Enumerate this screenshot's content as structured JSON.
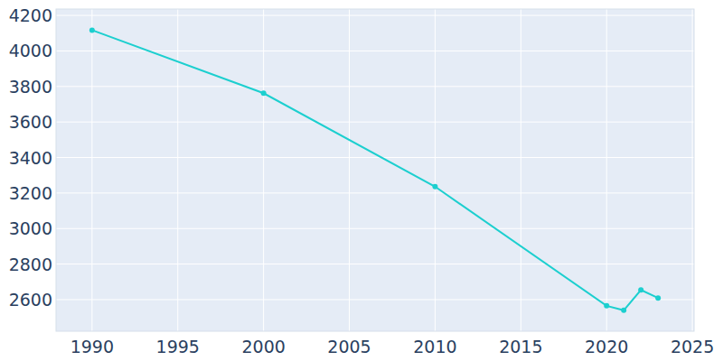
{
  "chart_data": {
    "type": "line",
    "x": [
      1990,
      2000,
      2010,
      2020,
      2021,
      2022,
      2023
    ],
    "values": [
      4117,
      3762,
      3236,
      2565,
      2540,
      2654,
      2609
    ],
    "color": "#1ccfcf",
    "marker": "circle",
    "xlim": [
      1987.9,
      2025.1
    ],
    "xticks": [
      1990,
      1995,
      2000,
      2005,
      2010,
      2015,
      2020,
      2025
    ],
    "ylim": [
      2422,
      4236
    ],
    "yticks": [
      2600,
      2800,
      3000,
      3200,
      3400,
      3600,
      3800,
      4000,
      4200
    ],
    "grid": true
  }
}
